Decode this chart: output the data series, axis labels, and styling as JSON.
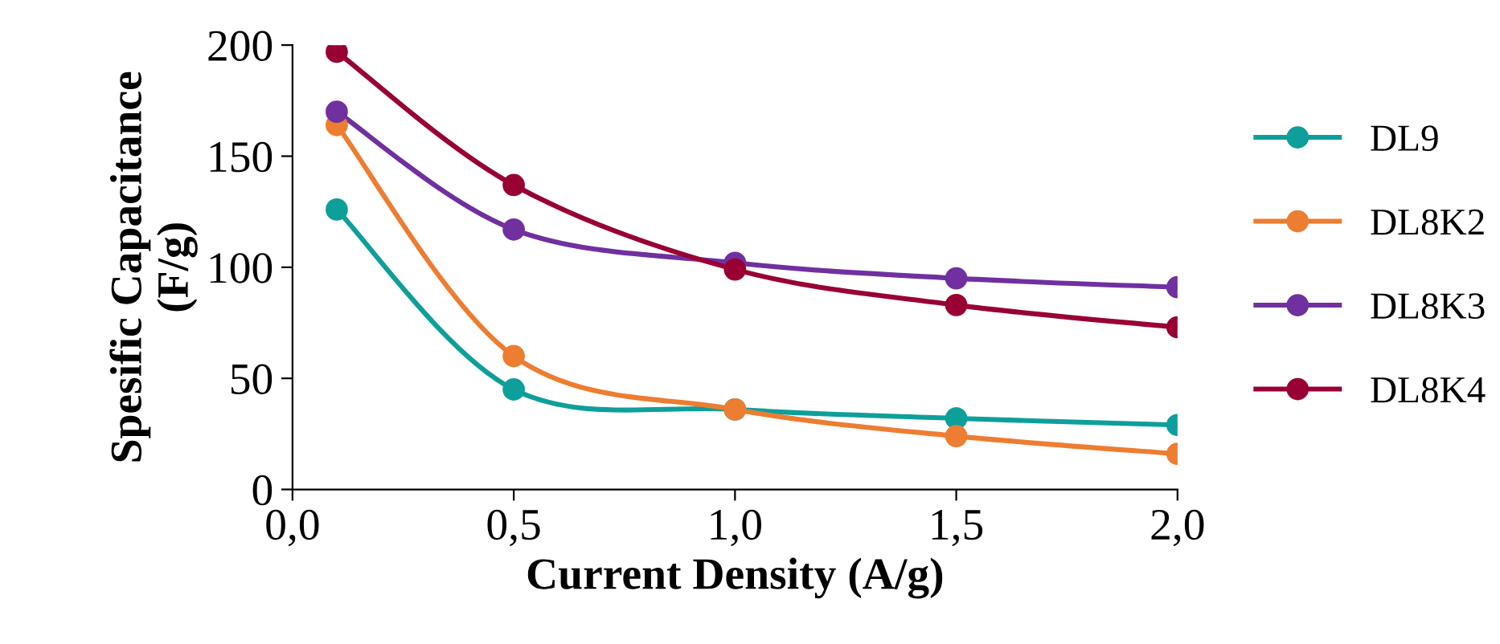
{
  "chart_data": {
    "type": "line",
    "xlabel": "Current Density (A/g)",
    "ylabel": "Spesific Capacitance\n(F/g)",
    "x": [
      0.1,
      0.5,
      1.0,
      1.5,
      2.0
    ],
    "series": [
      {
        "name": "DL9",
        "color": "#0e9f9b",
        "values": [
          126,
          45,
          36,
          32,
          29
        ]
      },
      {
        "name": "DL8K2",
        "color": "#ed7d31",
        "values": [
          164,
          60,
          36,
          24,
          16
        ]
      },
      {
        "name": "DL8K3",
        "color": "#7030a0",
        "values": [
          170,
          117,
          102,
          95,
          91
        ]
      },
      {
        "name": "DL8K4",
        "color": "#990033",
        "values": [
          197,
          137,
          99,
          83,
          73
        ]
      }
    ],
    "xlim": [
      0,
      2
    ],
    "xticks": [
      {
        "value": 0,
        "label": "0,0"
      },
      {
        "value": 0.5,
        "label": "0,5"
      },
      {
        "value": 1,
        "label": "1,0"
      },
      {
        "value": 1.5,
        "label": "1,5"
      },
      {
        "value": 2,
        "label": "2,0"
      }
    ],
    "ylim": [
      0,
      200
    ],
    "yticks": [
      0,
      50,
      100,
      150,
      200
    ],
    "grid": false,
    "legend": "right",
    "marker": "circle",
    "line_style": "solid"
  }
}
